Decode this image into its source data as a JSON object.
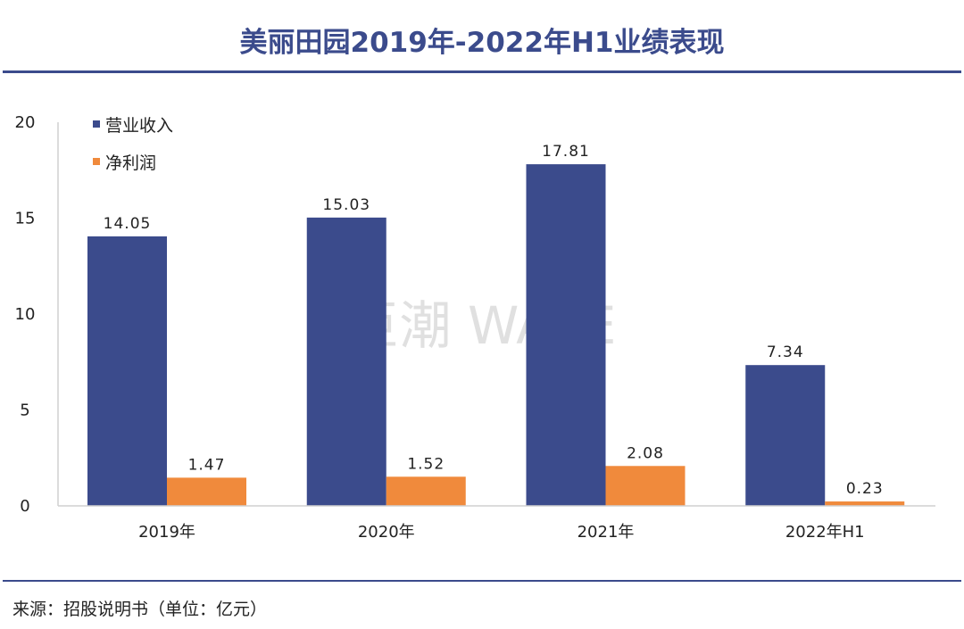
{
  "title": "美丽田园2019年-2022年H1业绩表现",
  "source": "来源：招股说明书（单位：亿元）",
  "watermark": "巨潮 WAVE",
  "chart_data": {
    "type": "bar",
    "title": "美丽田园2019年-2022年H1业绩表现",
    "categories": [
      "2019年",
      "2020年",
      "2021年",
      "2022年H1"
    ],
    "series": [
      {
        "name": "营业收入",
        "values": [
          14.05,
          15.03,
          17.81,
          7.34
        ],
        "labels": [
          "14.05",
          "15.03",
          "17.81",
          "7.34"
        ],
        "color": "#3b4b8c"
      },
      {
        "name": "净利润",
        "values": [
          1.47,
          1.52,
          2.08,
          0.23
        ],
        "labels": [
          "1.47",
          "1.52",
          "2.08",
          "0.23"
        ],
        "color": "#f08a3c"
      }
    ],
    "ylim": [
      0,
      20
    ],
    "yticks": [
      "0",
      "5",
      "10",
      "15",
      "20"
    ],
    "grid": false,
    "legend": "top-left"
  }
}
